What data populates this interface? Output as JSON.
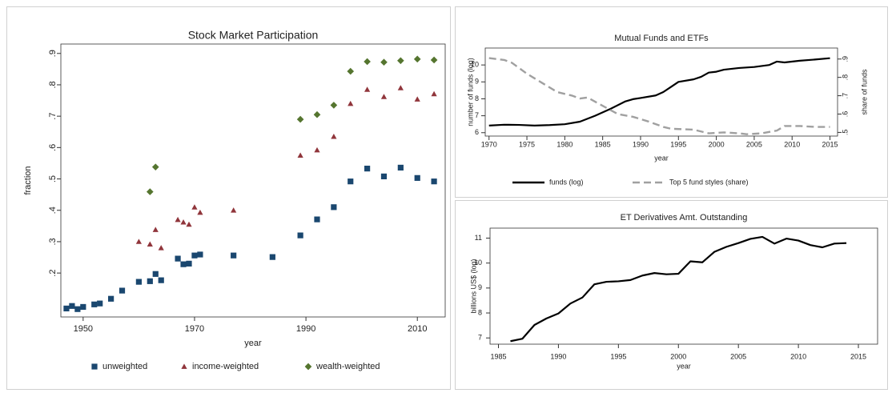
{
  "chart_data": [
    {
      "type": "scatter",
      "title": "Stock Market Participation",
      "x_label": "year",
      "y_label": "fraction",
      "x": [
        1947,
        1948,
        1949,
        1950,
        1952,
        1953,
        1955,
        1957,
        1960,
        1962,
        1963,
        1964,
        1967,
        1968,
        1969,
        1970,
        1971,
        1977,
        1984,
        1989,
        1992,
        1995,
        1998,
        2001,
        2004,
        2007,
        2010,
        2013
      ],
      "series": [
        {
          "name": "unweighted",
          "color": "#1a476f",
          "marker": "square",
          "values": [
            0.087,
            0.095,
            0.085,
            0.092,
            0.1,
            0.103,
            0.118,
            0.144,
            0.172,
            0.174,
            0.197,
            0.177,
            0.246,
            0.228,
            0.23,
            0.256,
            0.259,
            0.256,
            0.251,
            0.32,
            0.371,
            0.41,
            0.492,
            0.533,
            0.508,
            0.536,
            0.503,
            0.492
          ]
        },
        {
          "name": "income-weighted",
          "color": "#90353b",
          "marker": "triangle",
          "values": [
            null,
            null,
            null,
            null,
            null,
            null,
            null,
            null,
            0.3,
            0.292,
            0.338,
            0.28,
            0.37,
            0.362,
            0.355,
            0.41,
            0.393,
            0.4,
            null,
            0.575,
            0.592,
            0.635,
            0.74,
            0.785,
            0.762,
            0.79,
            0.754,
            0.771
          ]
        },
        {
          "name": "wealth-weighted",
          "color": "#55752f",
          "marker": "diamond",
          "values": [
            null,
            null,
            null,
            null,
            null,
            null,
            null,
            null,
            null,
            0.459,
            0.538,
            null,
            null,
            null,
            null,
            null,
            null,
            null,
            null,
            0.69,
            0.705,
            0.735,
            0.843,
            0.874,
            0.872,
            0.877,
            0.882,
            0.879
          ]
        }
      ],
      "xlim": [
        1946,
        2015
      ],
      "xticks": [
        1950,
        1970,
        1990,
        2010
      ],
      "ylim": [
        0.06,
        0.93
      ],
      "yticks": [
        {
          "value": 0.2,
          "label": ".2"
        },
        {
          "value": 0.3,
          "label": ".3"
        },
        {
          "value": 0.4,
          "label": ".4"
        },
        {
          "value": 0.5,
          "label": ".5"
        },
        {
          "value": 0.6,
          "label": ".6"
        },
        {
          "value": 0.7,
          "label": ".7"
        },
        {
          "value": 0.8,
          "label": ".8"
        },
        {
          "value": 0.9,
          "label": ".9"
        }
      ],
      "legend": "bottom"
    },
    {
      "type": "line",
      "title": "Mutual Funds and ETFs",
      "x_label": "year",
      "y_label": "number of funds (log)",
      "y2_label": "share of funds",
      "series": [
        {
          "name": "funds (log)",
          "color": "#000000",
          "dash": false,
          "x": [
            1970,
            1972,
            1974,
            1976,
            1978,
            1980,
            1982,
            1984,
            1986,
            1988,
            1989,
            1990,
            1992,
            1993,
            1994,
            1995,
            1997,
            1998,
            1999,
            2000,
            2001,
            2003,
            2005,
            2007,
            2008,
            2009,
            2011,
            2013,
            2015
          ],
          "values": [
            6.42,
            6.47,
            6.46,
            6.42,
            6.45,
            6.5,
            6.65,
            7.0,
            7.4,
            7.85,
            7.98,
            8.05,
            8.2,
            8.4,
            8.7,
            9.0,
            9.15,
            9.3,
            9.55,
            9.6,
            9.72,
            9.82,
            9.88,
            10.0,
            10.2,
            10.15,
            10.25,
            10.32,
            10.4
          ]
        },
        {
          "name": "Top 5 fund styles (share)",
          "color": "#a0a0a0",
          "dash": true,
          "axis": "y2",
          "x": [
            1970,
            1972,
            1973,
            1975,
            1977,
            1979,
            1981,
            1982,
            1983,
            1985,
            1987,
            1989,
            1991,
            1993,
            1994,
            1997,
            1999,
            2001,
            2003,
            2004,
            2006,
            2008,
            2009,
            2011,
            2013,
            2015
          ],
          "values": [
            0.905,
            0.895,
            0.88,
            0.82,
            0.77,
            0.72,
            0.7,
            0.685,
            0.69,
            0.645,
            0.6,
            0.585,
            0.56,
            0.53,
            0.52,
            0.515,
            0.495,
            0.5,
            0.495,
            0.49,
            0.495,
            0.51,
            0.535,
            0.535,
            0.53,
            0.53
          ]
        }
      ],
      "xlim": [
        1969.5,
        2016
      ],
      "xticks": [
        1970,
        1975,
        1980,
        1985,
        1990,
        1995,
        2000,
        2005,
        2010,
        2015
      ],
      "ylim": [
        5.8,
        11
      ],
      "yticks": [
        6,
        7,
        8,
        9,
        10
      ],
      "y2lim": [
        0.48,
        0.96
      ],
      "y2ticks": [
        {
          "value": 0.5,
          "label": ".5"
        },
        {
          "value": 0.6,
          "label": ".6"
        },
        {
          "value": 0.7,
          "label": ".7"
        },
        {
          "value": 0.8,
          "label": ".8"
        },
        {
          "value": 0.9,
          "label": ".9"
        }
      ],
      "legend": "bottom"
    },
    {
      "type": "line",
      "title": "ET Derivatives Amt. Outstanding",
      "x_label": "year",
      "y_label": "billions US$ (log)",
      "x": [
        1986,
        1987,
        1988,
        1989,
        1990,
        1991,
        1992,
        1993,
        1994,
        1995,
        1996,
        1997,
        1998,
        1999,
        2000,
        2001,
        2002,
        2003,
        2004,
        2005,
        2006,
        2007,
        2008,
        2009,
        2010,
        2011,
        2012,
        2013,
        2014
      ],
      "series": [
        {
          "color": "#000000",
          "dash": false,
          "values": [
            6.87,
            6.97,
            7.52,
            7.78,
            7.98,
            8.38,
            8.62,
            9.15,
            9.25,
            9.27,
            9.32,
            9.5,
            9.6,
            9.55,
            9.57,
            10.07,
            10.03,
            10.45,
            10.65,
            10.8,
            10.97,
            11.05,
            10.78,
            10.98,
            10.9,
            10.72,
            10.63,
            10.78,
            10.8
          ]
        }
      ],
      "xlim": [
        1984.3,
        2016.6
      ],
      "xticks": [
        1985,
        1990,
        1995,
        2000,
        2005,
        2010,
        2015
      ],
      "ylim": [
        6.75,
        11.4
      ],
      "yticks": [
        7,
        8,
        9,
        10,
        11
      ]
    }
  ]
}
